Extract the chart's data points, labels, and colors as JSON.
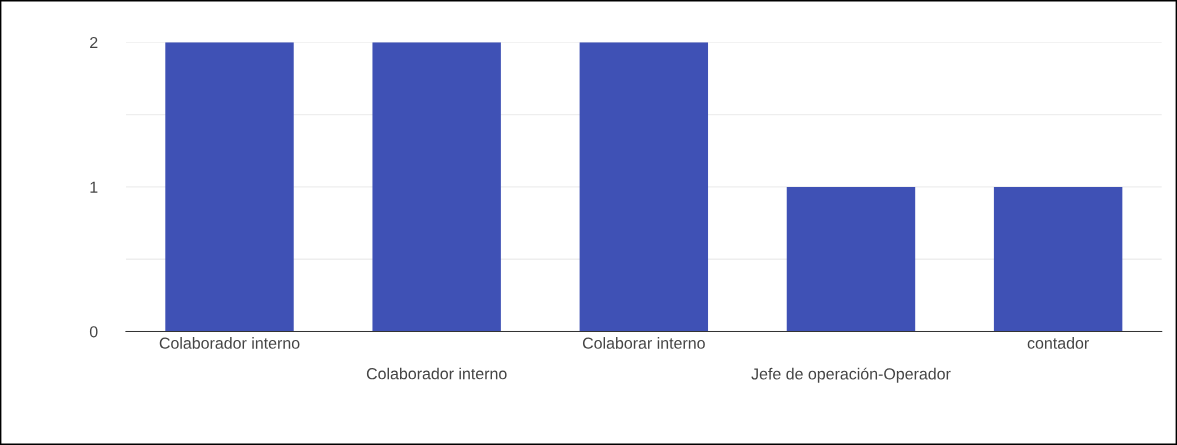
{
  "chart_data": {
    "type": "bar",
    "categories": [
      "Colaborador interno",
      "Colaborador interno",
      "Colaborar interno",
      "Jefe de operación-Operador",
      "contador"
    ],
    "values": [
      2,
      2,
      2,
      1,
      1
    ],
    "color": "#3f51b5",
    "ylim": [
      0,
      2
    ],
    "yticks": [
      0,
      {
        "value": 0.5,
        "label": null
      },
      1,
      {
        "value": 1.5,
        "label": null
      },
      2
    ],
    "grid": "y"
  }
}
